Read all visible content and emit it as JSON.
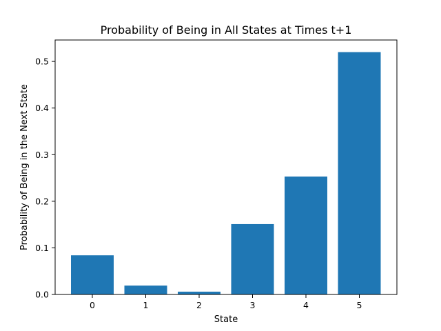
{
  "chart_data": {
    "type": "bar",
    "title": "Probability of Being in All States at Times t+1",
    "xlabel": "State",
    "ylabel": "Probability of Being in the Next State",
    "categories": [
      "0",
      "1",
      "2",
      "3",
      "4",
      "5"
    ],
    "values": [
      0.084,
      0.019,
      0.006,
      0.151,
      0.253,
      0.52
    ],
    "ylim": [
      0,
      0.546
    ],
    "yticks": [
      0.0,
      0.1,
      0.2,
      0.3,
      0.4,
      0.5
    ],
    "ytick_labels": [
      "0.0",
      "0.1",
      "0.2",
      "0.3",
      "0.4",
      "0.5"
    ],
    "grid": false,
    "legend": "none",
    "bar_color": "#1f77b4"
  }
}
